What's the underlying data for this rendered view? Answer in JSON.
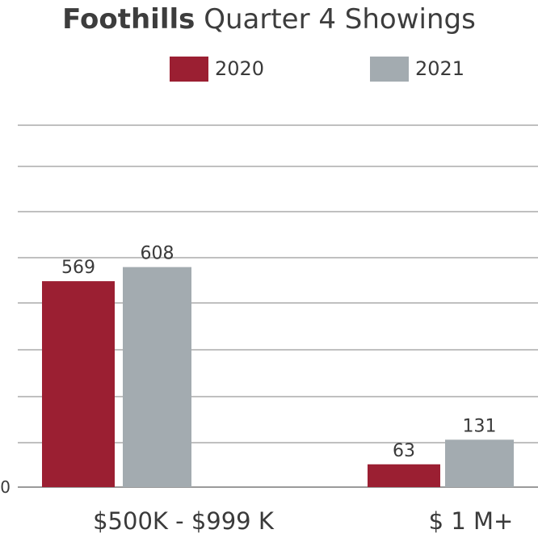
{
  "title": {
    "bold": "Foothills",
    "rest": " Quarter 4 Showings"
  },
  "chart_data": {
    "type": "bar",
    "categories": [
      "$500K - $999 K",
      "$ 1 M+"
    ],
    "series": [
      {
        "name": "2020",
        "values": [
          569,
          63
        ],
        "color": "#9b1f32"
      },
      {
        "name": "2021",
        "values": [
          608,
          131
        ],
        "color": "#a3abb0"
      }
    ],
    "ylim": [
      0,
      1000
    ],
    "y_tick_labels": [
      "0"
    ],
    "grid": true,
    "legend_position": "top-center",
    "data_labels": true
  }
}
